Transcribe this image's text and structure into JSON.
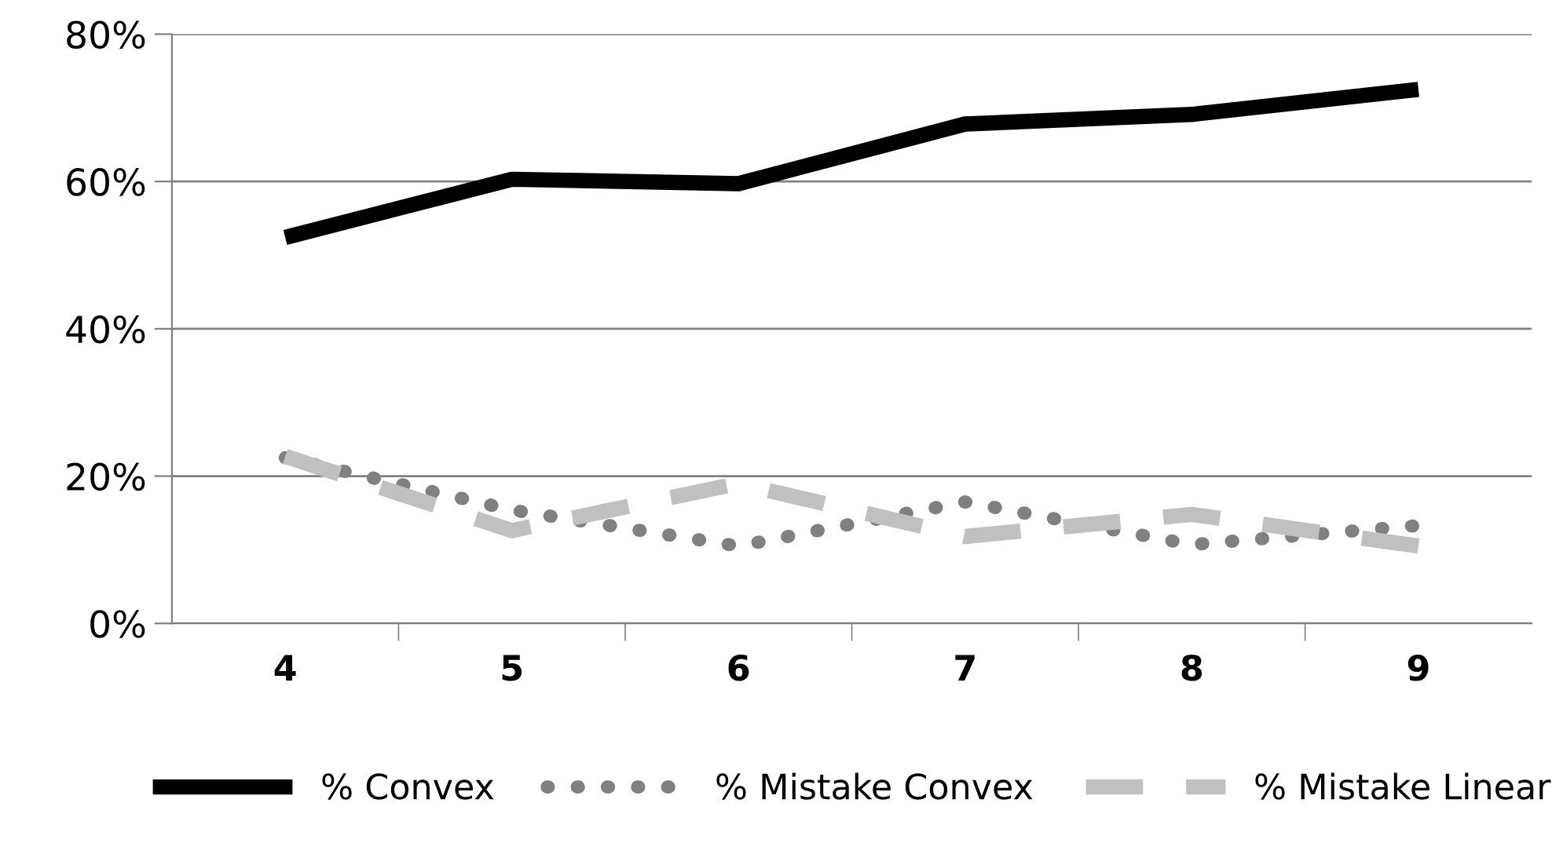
{
  "chart_data": {
    "type": "line",
    "categories": [
      "4",
      "5",
      "6",
      "7",
      "8",
      "9"
    ],
    "series": [
      {
        "name": "% Convex",
        "color": "#000000",
        "line_style": "solid",
        "values": [
          52.4,
          60.3,
          59.7,
          67.8,
          69.1,
          72.5
        ]
      },
      {
        "name": "% Mistake Convex",
        "color": "#808080",
        "line_style": "dotted",
        "values": [
          22.5,
          15.4,
          10.5,
          16.5,
          10.7,
          13.3
        ]
      },
      {
        "name": "% Mistake Linear",
        "color": "#c0c0c0",
        "line_style": "dashed",
        "values": [
          22.7,
          12.6,
          19.0,
          11.8,
          14.8,
          10.5
        ]
      }
    ],
    "ylim": [
      0,
      80
    ],
    "yticks": [
      {
        "value": 0,
        "label": "0%"
      },
      {
        "value": 20,
        "label": "20%"
      },
      {
        "value": 40,
        "label": "40%"
      },
      {
        "value": 60,
        "label": "60%"
      },
      {
        "value": 80,
        "label": "80%"
      }
    ],
    "grid": "y",
    "legend": "bottom",
    "marker": "none"
  }
}
